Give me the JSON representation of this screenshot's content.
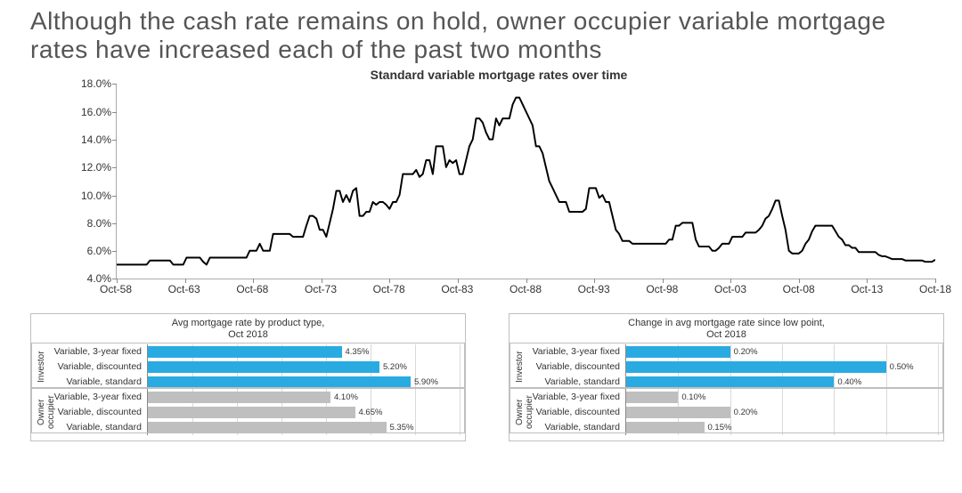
{
  "headline": "Although the cash rate remains on hold, owner occupier variable mortgage rates have increased each of the past two months",
  "top_chart": {
    "type": "line",
    "title": "Standard variable mortgage rates over time",
    "ylabel_suffix": "%",
    "ylim": [
      4,
      18
    ],
    "ytick_step": 2,
    "line_color": "#000000",
    "line_width": 2,
    "background_color": "#ffffff",
    "x_tick_labels": [
      "Oct-58",
      "Oct-63",
      "Oct-68",
      "Oct-73",
      "Oct-78",
      "Oct-83",
      "Oct-88",
      "Oct-93",
      "Oct-98",
      "Oct-03",
      "Oct-08",
      "Oct-13",
      "Oct-18"
    ],
    "series": [
      5.0,
      5.0,
      5.0,
      5.0,
      5.0,
      5.0,
      5.0,
      5.0,
      5.0,
      5.0,
      5.3,
      5.3,
      5.3,
      5.3,
      5.3,
      5.3,
      5.3,
      5.0,
      5.0,
      5.0,
      5.0,
      5.5,
      5.5,
      5.5,
      5.5,
      5.5,
      5.2,
      5.0,
      5.5,
      5.5,
      5.5,
      5.5,
      5.5,
      5.5,
      5.5,
      5.5,
      5.5,
      5.5,
      5.5,
      5.5,
      6.0,
      6.0,
      6.0,
      6.5,
      6.0,
      6.0,
      6.0,
      7.2,
      7.2,
      7.2,
      7.2,
      7.2,
      7.2,
      7.0,
      7.0,
      7.0,
      7.0,
      7.8,
      8.5,
      8.5,
      8.3,
      7.5,
      7.5,
      7.0,
      8.0,
      9.0,
      10.3,
      10.3,
      9.5,
      10.0,
      9.5,
      10.3,
      10.5,
      8.5,
      8.5,
      8.8,
      8.8,
      9.5,
      9.3,
      9.5,
      9.5,
      9.3,
      9.0,
      9.5,
      9.5,
      10.0,
      11.5,
      11.5,
      11.5,
      11.5,
      11.8,
      11.3,
      11.5,
      12.5,
      12.5,
      11.5,
      13.5,
      13.5,
      13.5,
      12.0,
      12.5,
      12.3,
      12.5,
      11.5,
      11.5,
      12.5,
      13.5,
      14.0,
      15.5,
      15.5,
      15.2,
      14.5,
      14.0,
      14.0,
      15.5,
      15.0,
      15.5,
      15.5,
      15.5,
      16.5,
      17.0,
      17.0,
      16.5,
      16.0,
      15.5,
      15.0,
      13.5,
      13.5,
      13.0,
      12.0,
      11.0,
      10.5,
      10.0,
      9.5,
      9.5,
      9.5,
      8.8,
      8.8,
      8.8,
      8.8,
      8.8,
      9.0,
      10.5,
      10.5,
      10.5,
      9.8,
      10.0,
      9.5,
      9.5,
      8.5,
      7.5,
      7.2,
      6.7,
      6.7,
      6.7,
      6.5,
      6.5,
      6.5,
      6.5,
      6.5,
      6.5,
      6.5,
      6.5,
      6.5,
      6.5,
      6.5,
      6.8,
      6.8,
      7.8,
      7.8,
      8.0,
      8.0,
      8.0,
      8.0,
      6.8,
      6.3,
      6.3,
      6.3,
      6.3,
      6.0,
      6.0,
      6.2,
      6.5,
      6.5,
      6.5,
      7.0,
      7.0,
      7.0,
      7.0,
      7.3,
      7.3,
      7.3,
      7.3,
      7.5,
      7.8,
      8.3,
      8.5,
      9.0,
      9.6,
      9.6,
      8.5,
      7.5,
      6.0,
      5.8,
      5.8,
      5.8,
      6.0,
      6.5,
      6.8,
      7.4,
      7.8,
      7.8,
      7.8,
      7.8,
      7.8,
      7.8,
      7.4,
      7.0,
      6.8,
      6.4,
      6.4,
      6.2,
      6.2,
      5.9,
      5.9,
      5.9,
      5.9,
      5.9,
      5.9,
      5.7,
      5.6,
      5.6,
      5.5,
      5.4,
      5.4,
      5.4,
      5.4,
      5.3,
      5.3,
      5.3,
      5.3,
      5.3,
      5.3,
      5.2,
      5.2,
      5.2,
      5.35
    ]
  },
  "left_chart": {
    "type": "bar",
    "title_line1": "Avg mortgage rate by product type,",
    "title_line2": "Oct 2018",
    "value_suffix": "%",
    "max": 7.0,
    "grid_step": 1.0,
    "groups": [
      {
        "label": "Investor",
        "color": "#29abe2",
        "rows": [
          {
            "label": "Variable, 3-year fixed",
            "value": 4.35
          },
          {
            "label": "Variable, discounted",
            "value": 5.2
          },
          {
            "label": "Variable, standard",
            "value": 5.9
          }
        ]
      },
      {
        "label": "Owner occupier",
        "color": "#bfbfbf",
        "rows": [
          {
            "label": "Variable, 3-year fixed",
            "value": 4.1
          },
          {
            "label": "Variable, discounted",
            "value": 4.65
          },
          {
            "label": "Variable, standard",
            "value": 5.35
          }
        ]
      }
    ]
  },
  "right_chart": {
    "type": "bar",
    "title_line1": "Change in avg mortgage rate since low point,",
    "title_line2": "Oct 2018",
    "value_suffix": "%",
    "max": 0.6,
    "grid_step": 0.1,
    "groups": [
      {
        "label": "Investor",
        "color": "#29abe2",
        "rows": [
          {
            "label": "Variable, 3-year fixed",
            "value": 0.2
          },
          {
            "label": "Variable, discounted",
            "value": 0.5
          },
          {
            "label": "Variable, standard",
            "value": 0.4
          }
        ]
      },
      {
        "label": "Owner occupier",
        "color": "#bfbfbf",
        "rows": [
          {
            "label": "Variable, 3-year fixed",
            "value": 0.1
          },
          {
            "label": "Variable, discounted",
            "value": 0.2
          },
          {
            "label": "Variable, standard",
            "value": 0.15
          }
        ]
      }
    ]
  }
}
